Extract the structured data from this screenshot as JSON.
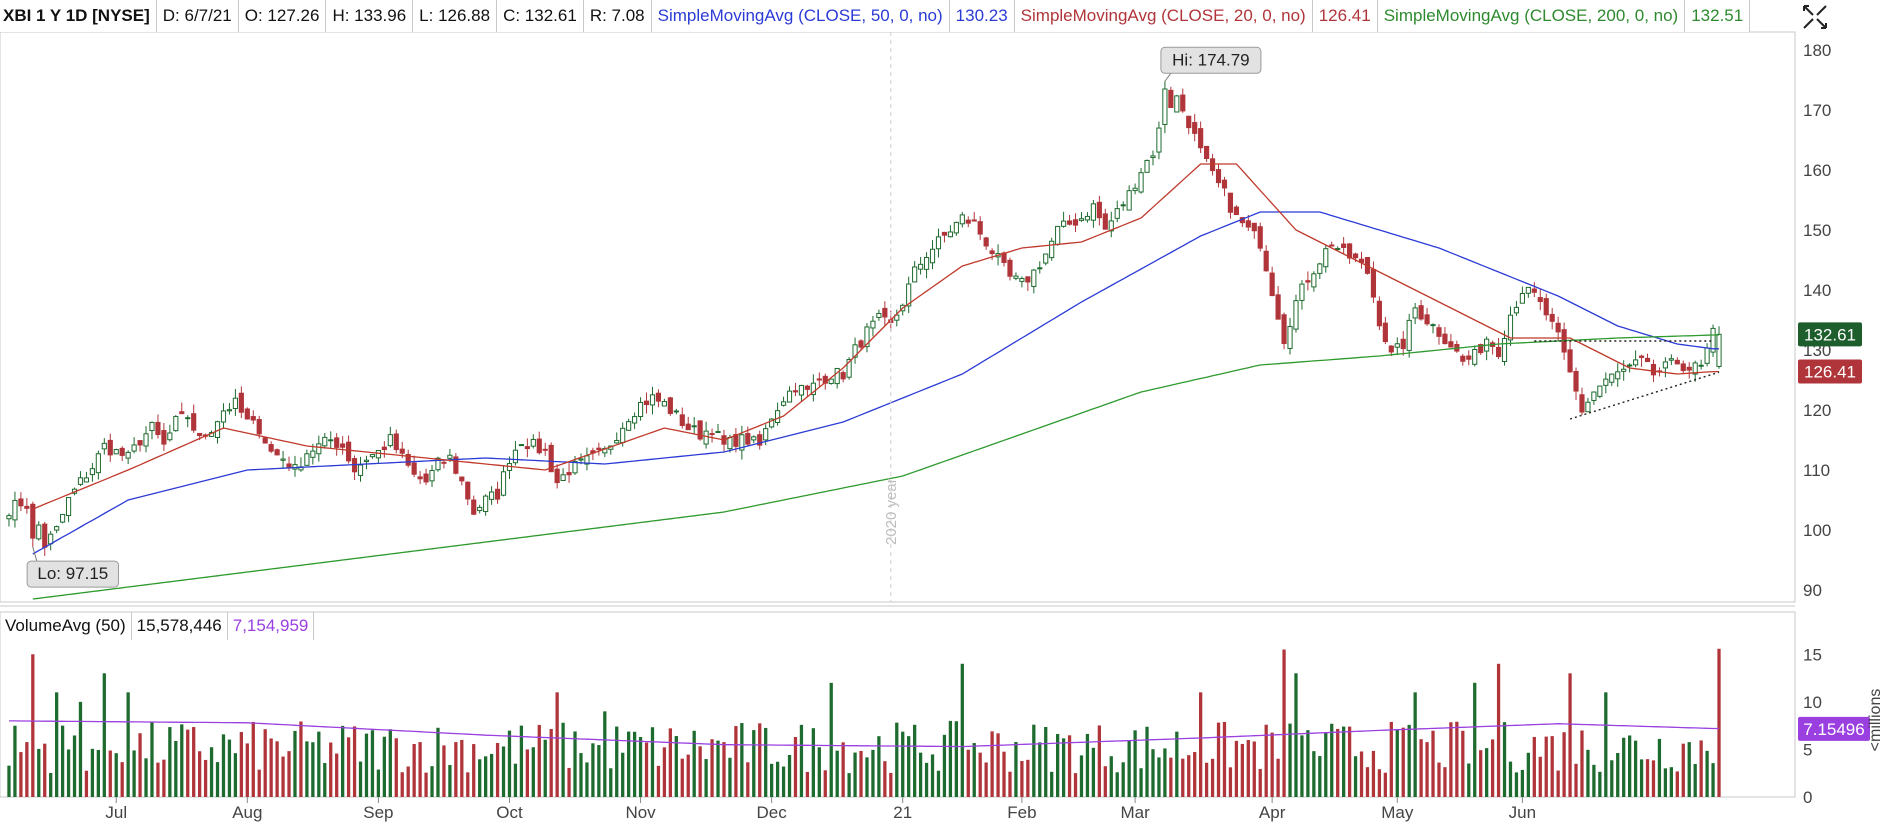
{
  "header": {
    "symbol": "XBI 1 Y 1D [NYSE]",
    "date": "D: 6/7/21",
    "open": "O: 127.26",
    "high": "H: 133.96",
    "low": "L: 126.88",
    "close": "C: 132.61",
    "range": "R: 7.08",
    "sma50_label": "SimpleMovingAvg (CLOSE, 50, 0, no)",
    "sma50_value": "130.23",
    "sma20_label": "SimpleMovingAvg (CLOSE, 20, 0, no)",
    "sma20_value": "126.41",
    "sma200_label": "SimpleMovingAvg (CLOSE, 200, 0, no)",
    "sma200_value": "132.51"
  },
  "volume_header": {
    "label": "VolumeAvg (50)",
    "volume": "15,578,446",
    "avg": "7,154,959"
  },
  "icons": {
    "crosshair": "crosshair-toggle-icon"
  },
  "colors": {
    "up": "#1d6b2e",
    "down": "#b0353a",
    "sma50": "#2b3bd6",
    "sma20": "#c0392b",
    "sma200": "#2e9a2e",
    "volume_avg": "#9a3fe0",
    "label_close_bg": "#1d5e2c",
    "label_sma20_bg": "#b0353a",
    "label_vavg_bg": "#9a3fe0"
  },
  "chart_data": [
    {
      "type": "candlestick",
      "title": "XBI 1 Y 1D [NYSE]",
      "x_tick_labels": [
        "Jul",
        "Aug",
        "Sep",
        "Oct",
        "Nov",
        "Dec",
        "21",
        "Feb",
        "Mar",
        "Apr",
        "May",
        "Jun"
      ],
      "divider_label": "2020 year",
      "ylim": [
        88,
        183
      ],
      "y_ticks": [
        90,
        100,
        110,
        120,
        130,
        140,
        150,
        160,
        170,
        180
      ],
      "grid": false,
      "annotations": [
        {
          "text": "Hi: 174.79",
          "value": 174.79
        },
        {
          "text": "Lo: 97.15",
          "value": 97.15
        }
      ],
      "right_labels": [
        {
          "text": "132.61",
          "value": 132.61,
          "series": "close"
        },
        {
          "text": "126.41",
          "value": 126.41,
          "series": "sma20"
        }
      ],
      "closes": [
        [
          0,
          103.5
        ],
        [
          2,
          104.5
        ],
        [
          4,
          104
        ],
        [
          6,
          97.5
        ],
        [
          8,
          100
        ],
        [
          10,
          105
        ],
        [
          12,
          108
        ],
        [
          14,
          110.5
        ],
        [
          16,
          114
        ],
        [
          18,
          113
        ],
        [
          20,
          112
        ],
        [
          22,
          115
        ],
        [
          24,
          117
        ],
        [
          26,
          114
        ],
        [
          28,
          118
        ],
        [
          30,
          119
        ],
        [
          32,
          115
        ],
        [
          34,
          117
        ],
        [
          36,
          120
        ],
        [
          38,
          121
        ],
        [
          40,
          118
        ],
        [
          42,
          117
        ],
        [
          44,
          113
        ],
        [
          46,
          112
        ],
        [
          48,
          110
        ],
        [
          50,
          113
        ],
        [
          52,
          114
        ],
        [
          54,
          115
        ],
        [
          56,
          114
        ],
        [
          58,
          110
        ],
        [
          60,
          112
        ],
        [
          62,
          113
        ],
        [
          64,
          115
        ],
        [
          66,
          112
        ],
        [
          68,
          109
        ],
        [
          70,
          108
        ],
        [
          72,
          111
        ],
        [
          74,
          112
        ],
        [
          76,
          108
        ],
        [
          78,
          103
        ],
        [
          80,
          105
        ],
        [
          82,
          106
        ],
        [
          84,
          112
        ],
        [
          86,
          115
        ],
        [
          88,
          114
        ],
        [
          90,
          113
        ],
        [
          92,
          108
        ],
        [
          94,
          110
        ],
        [
          96,
          111
        ],
        [
          98,
          112
        ],
        [
          100,
          113
        ],
        [
          102,
          116
        ],
        [
          104,
          119
        ],
        [
          106,
          121
        ],
        [
          108,
          122
        ],
        [
          110,
          121
        ],
        [
          112,
          119
        ],
        [
          114,
          117
        ],
        [
          116,
          116
        ],
        [
          118,
          117
        ],
        [
          120,
          114
        ],
        [
          122,
          115
        ],
        [
          124,
          115
        ],
        [
          126,
          114
        ],
        [
          128,
          119
        ],
        [
          130,
          122
        ],
        [
          132,
          124
        ],
        [
          134,
          123
        ],
        [
          136,
          125
        ],
        [
          138,
          126
        ],
        [
          140,
          126
        ],
        [
          142,
          130
        ],
        [
          144,
          133
        ],
        [
          146,
          135
        ],
        [
          148,
          134
        ],
        [
          150,
          138
        ],
        [
          152,
          143
        ],
        [
          154,
          146
        ],
        [
          156,
          148
        ],
        [
          158,
          150
        ],
        [
          160,
          152
        ],
        [
          162,
          151
        ],
        [
          164,
          148
        ],
        [
          166,
          145
        ],
        [
          168,
          142
        ],
        [
          170,
          141
        ],
        [
          172,
          143
        ],
        [
          174,
          146
        ],
        [
          176,
          150
        ],
        [
          178,
          151
        ],
        [
          180,
          152
        ],
        [
          182,
          154
        ],
        [
          184,
          150
        ],
        [
          186,
          153
        ],
        [
          188,
          156
        ],
        [
          190,
          160
        ],
        [
          192,
          163
        ],
        [
          194,
          170
        ],
        [
          196,
          172
        ],
        [
          198,
          168
        ],
        [
          200,
          163
        ],
        [
          202,
          159
        ],
        [
          204,
          156
        ],
        [
          206,
          152
        ],
        [
          208,
          150
        ],
        [
          210,
          148
        ],
        [
          212,
          140
        ],
        [
          214,
          132
        ],
        [
          216,
          138
        ],
        [
          218,
          142
        ],
        [
          220,
          145
        ],
        [
          222,
          148
        ],
        [
          224,
          146
        ],
        [
          226,
          145
        ],
        [
          228,
          143
        ],
        [
          230,
          135
        ],
        [
          232,
          129
        ],
        [
          234,
          131
        ],
        [
          236,
          137
        ],
        [
          238,
          135
        ],
        [
          240,
          133
        ],
        [
          242,
          131
        ],
        [
          244,
          128
        ],
        [
          246,
          129
        ],
        [
          248,
          132
        ],
        [
          250,
          130
        ],
        [
          252,
          136
        ],
        [
          254,
          140
        ],
        [
          256,
          139
        ],
        [
          258,
          136
        ],
        [
          260,
          132
        ],
        [
          262,
          126
        ],
        [
          264,
          120
        ],
        [
          266,
          123
        ],
        [
          268,
          125
        ],
        [
          270,
          126
        ],
        [
          272,
          127
        ],
        [
          274,
          128
        ],
        [
          276,
          126
        ],
        [
          278,
          127
        ],
        [
          280,
          128
        ],
        [
          282,
          127
        ],
        [
          284,
          127
        ],
        [
          286,
          132.6
        ]
      ],
      "sma_series": [
        {
          "name": "SimpleMovingAvg (CLOSE, 50, 0, no)",
          "color": "#2b3bd6",
          "points": [
            [
              4,
              96
            ],
            [
              20,
              105
            ],
            [
              40,
              110
            ],
            [
              60,
              111
            ],
            [
              80,
              112
            ],
            [
              100,
              111
            ],
            [
              120,
              113
            ],
            [
              140,
              118
            ],
            [
              160,
              126
            ],
            [
              180,
              138
            ],
            [
              200,
              149
            ],
            [
              210,
              153
            ],
            [
              220,
              153
            ],
            [
              240,
              147
            ],
            [
              260,
              139
            ],
            [
              270,
              134
            ],
            [
              280,
              131
            ],
            [
              286,
              130.2
            ]
          ]
        },
        {
          "name": "SimpleMovingAvg (CLOSE, 20, 0, no)",
          "color": "#c0392b",
          "points": [
            [
              4,
              103.5
            ],
            [
              20,
              110
            ],
            [
              36,
              117
            ],
            [
              50,
              114
            ],
            [
              70,
              112
            ],
            [
              90,
              110
            ],
            [
              110,
              117
            ],
            [
              120,
              115
            ],
            [
              130,
              119
            ],
            [
              140,
              127
            ],
            [
              150,
              137
            ],
            [
              160,
              144
            ],
            [
              170,
              147
            ],
            [
              180,
              148
            ],
            [
              190,
              152
            ],
            [
              200,
              161
            ],
            [
              206,
              161
            ],
            [
              216,
              150
            ],
            [
              230,
              143
            ],
            [
              240,
              138
            ],
            [
              252,
              132
            ],
            [
              262,
              132
            ],
            [
              272,
              127
            ],
            [
              280,
              126
            ],
            [
              286,
              126.4
            ]
          ]
        },
        {
          "name": "SimpleMovingAvg (CLOSE, 200, 0, no)",
          "color": "#2e9a2e",
          "points": [
            [
              4,
              88.5
            ],
            [
              40,
              93
            ],
            [
              80,
              98
            ],
            [
              120,
              103
            ],
            [
              150,
              109
            ],
            [
              170,
              116
            ],
            [
              190,
              123
            ],
            [
              210,
              127.5
            ],
            [
              230,
              129
            ],
            [
              250,
              131
            ],
            [
              270,
              132
            ],
            [
              286,
              132.5
            ]
          ]
        }
      ]
    },
    {
      "type": "bar",
      "title": "VolumeAvg (50)",
      "ylabel": "<millions",
      "ylim": [
        0,
        16.5
      ],
      "y_ticks": [
        0,
        5,
        10,
        15
      ],
      "right_labels": [
        {
          "text": "7.15496",
          "value": 7.15496,
          "series": "volume_avg"
        }
      ],
      "volume_avg": [
        [
          0,
          8
        ],
        [
          40,
          7.8
        ],
        [
          80,
          6.5
        ],
        [
          120,
          5.5
        ],
        [
          160,
          5.3
        ],
        [
          200,
          6.2
        ],
        [
          230,
          7
        ],
        [
          260,
          7.7
        ],
        [
          286,
          7.2
        ]
      ],
      "last_volume": 15.578446
    }
  ]
}
